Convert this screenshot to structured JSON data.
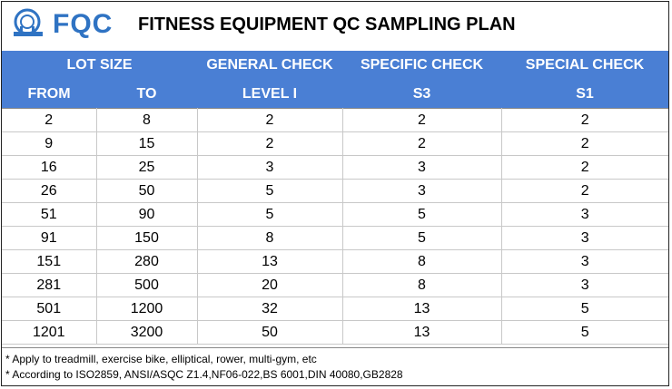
{
  "logo": {
    "text": "FQC",
    "icon": "fqc-logo-icon",
    "color": "#2f73c3"
  },
  "title": "FITNESS EQUIPMENT QC SAMPLING PLAN",
  "header_color": "#4a7fd4",
  "columns": {
    "row1": [
      "LOT SIZE",
      "GENERAL CHECK",
      "SPECIFIC CHECK",
      "SPECIAL CHECK"
    ],
    "row2": [
      "FROM",
      "TO",
      "LEVEL I",
      "S3",
      "S1"
    ]
  },
  "rows": [
    [
      "2",
      "8",
      "2",
      "2",
      "2"
    ],
    [
      "9",
      "15",
      "2",
      "2",
      "2"
    ],
    [
      "16",
      "25",
      "3",
      "3",
      "2"
    ],
    [
      "26",
      "50",
      "5",
      "3",
      "2"
    ],
    [
      "51",
      "90",
      "5",
      "5",
      "3"
    ],
    [
      "91",
      "150",
      "8",
      "5",
      "3"
    ],
    [
      "151",
      "280",
      "13",
      "8",
      "3"
    ],
    [
      "281",
      "500",
      "20",
      "8",
      "3"
    ],
    [
      "501",
      "1200",
      "32",
      "13",
      "5"
    ],
    [
      "1201",
      "3200",
      "50",
      "13",
      "5"
    ]
  ],
  "notes": [
    "* Apply to treadmill, exercise bike, elliptical, rower, multi-gym, etc",
    "* According to ISO2859, ANSI/ASQC Z1.4,NF06-022,BS 6001,DIN 40080,GB2828"
  ]
}
